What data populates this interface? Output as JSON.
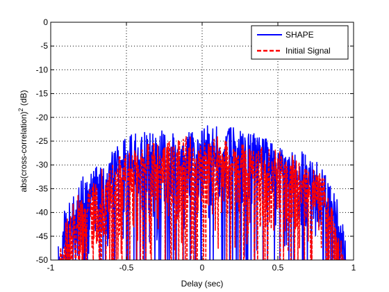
{
  "chart_data": {
    "type": "line",
    "title": "",
    "xlabel": "Delay (sec)",
    "ylabel": "abs(cross-correlation)",
    "ylabel_superscript": "2",
    "ylabel_unit": " (dB)",
    "xlim": [
      -1,
      1
    ],
    "ylim": [
      -50,
      0
    ],
    "xticks": [
      -1,
      -0.5,
      0,
      0.5,
      1
    ],
    "xtick_labels": [
      "-1",
      "-0.5",
      "0",
      "0.5",
      "1"
    ],
    "yticks": [
      0,
      -5,
      -10,
      -15,
      -20,
      -25,
      -30,
      -35,
      -40,
      -45,
      -50
    ],
    "ytick_labels": [
      "0",
      "-5",
      "-10",
      "-15",
      "-20",
      "-25",
      "-30",
      "-35",
      "-40",
      "-45",
      "-50"
    ],
    "grid": true,
    "legend_position": "top-right",
    "x_extent": [
      -0.95,
      0.95
    ],
    "series": [
      {
        "name": "SHAPE",
        "color": "#0000ff",
        "style": "solid",
        "envelope": {
          "x": [
            -0.95,
            -0.9,
            -0.8,
            -0.7,
            -0.6,
            -0.5,
            -0.4,
            -0.3,
            -0.2,
            -0.1,
            0,
            0.1,
            0.2,
            0.3,
            0.4,
            0.5,
            0.6,
            0.7,
            0.8,
            0.9,
            0.95
          ],
          "y": [
            -47,
            -38,
            -32,
            -30,
            -27,
            -24,
            -23,
            -23,
            -22,
            -23,
            -21,
            -22,
            -22,
            -23,
            -24,
            -26,
            -26,
            -28,
            -30,
            -38,
            -46
          ]
        }
      },
      {
        "name": "Initial Signal",
        "color": "#ff0000",
        "style": "dashed",
        "envelope": {
          "x": [
            -0.95,
            -0.9,
            -0.8,
            -0.7,
            -0.6,
            -0.5,
            -0.4,
            -0.3,
            -0.2,
            -0.1,
            0,
            0.1,
            0.2,
            0.3,
            0.4,
            0.5,
            0.6,
            0.7,
            0.8,
            0.9,
            0.95
          ],
          "y": [
            -49,
            -41,
            -35,
            -32,
            -29,
            -27,
            -26,
            -25,
            -25,
            -24,
            -24,
            -24,
            -25,
            -26,
            -26,
            -27,
            -28,
            -30,
            -32,
            -40,
            -48
          ]
        }
      }
    ]
  }
}
